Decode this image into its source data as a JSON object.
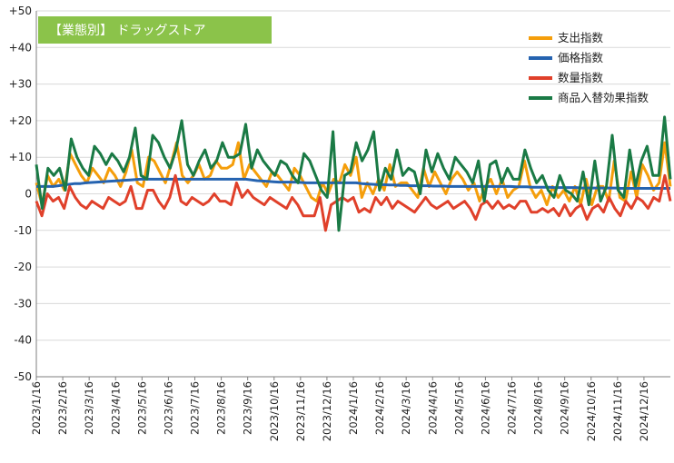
{
  "chart_data": {
    "type": "line",
    "title": "【業態別】 ドラッグストア",
    "xlabel": "",
    "ylabel": "",
    "ylim": [
      -50,
      50
    ],
    "yticks": [
      "+50",
      "+40",
      "+30",
      "+20",
      "+10",
      "0",
      "-10",
      "-20",
      "-30",
      "-40",
      "-50"
    ],
    "ytick_values": [
      50,
      40,
      30,
      20,
      10,
      0,
      -10,
      -20,
      -30,
      -40,
      -50
    ],
    "x_tick_labels": [
      "2023/1/16",
      "2023/2/16",
      "2023/3/16",
      "2023/4/16",
      "2023/5/16",
      "2023/6/16",
      "2023/7/16",
      "2023/8/16",
      "2023/9/16",
      "2023/10/16",
      "2023/11/16",
      "2023/12/16",
      "2024/1/16",
      "2024/2/16",
      "2024/3/16",
      "2024/4/16",
      "2024/5/16",
      "2024/6/16",
      "2024/7/16",
      "2024/8/16",
      "2024/9/16",
      "2024/10/16",
      "2024/11/16",
      "2024/12/16"
    ],
    "grid": true,
    "legend_position": "top-right",
    "series": [
      {
        "name": "支出指数",
        "color": "#F59E0B",
        "values": [
          3,
          -3,
          5,
          2,
          4,
          1,
          11,
          8,
          5,
          3,
          7,
          5,
          3,
          7,
          5,
          2,
          6,
          12,
          3,
          2,
          10,
          9,
          6,
          3,
          8,
          14,
          5,
          3,
          5,
          8,
          4,
          5,
          9,
          7,
          7,
          8,
          14,
          4,
          8,
          6,
          4,
          2,
          6,
          5,
          3,
          1,
          7,
          5,
          2,
          -1,
          -2,
          3,
          0,
          4,
          3,
          8,
          5,
          10,
          -1,
          3,
          0,
          4,
          1,
          8,
          2,
          3,
          3,
          1,
          -1,
          7,
          2,
          6,
          3,
          0,
          4,
          6,
          4,
          1,
          3,
          -2,
          2,
          4,
          0,
          4,
          -1,
          1,
          2,
          9,
          2,
          -1,
          1,
          -3,
          2,
          -1,
          1,
          -2,
          2,
          -3,
          4,
          -3,
          2,
          2,
          -2,
          9,
          -1,
          -2,
          6,
          -1,
          8,
          5,
          1,
          3,
          14,
          2
        ]
      },
      {
        "name": "価格指数",
        "color": "#2563B0",
        "values": [
          2,
          2,
          2,
          2,
          2.2,
          2.4,
          2.6,
          2.8,
          2.8,
          3,
          3.1,
          3.2,
          3.3,
          3.4,
          3.5,
          3.6,
          3.7,
          3.8,
          3.9,
          4,
          4,
          4,
          4,
          4,
          4,
          4,
          4,
          4,
          4,
          4,
          4,
          4,
          4,
          4,
          4,
          4,
          4,
          4,
          4,
          3.8,
          3.6,
          3.5,
          3.4,
          3.3,
          3.2,
          3.2,
          3.2,
          3.2,
          3.1,
          3,
          3,
          3,
          3,
          3,
          3,
          3,
          3,
          3,
          3,
          2.8,
          2.7,
          2.6,
          2.5,
          2.5,
          2.4,
          2.4,
          2.3,
          2.3,
          2.2,
          2.2,
          2.2,
          2.2,
          2.1,
          2.1,
          2.1,
          2,
          2,
          2,
          2,
          2,
          2,
          2,
          2,
          2,
          2,
          2,
          2,
          1.9,
          1.9,
          1.9,
          1.8,
          1.8,
          1.8,
          1.8,
          1.7,
          1.7,
          1.7,
          1.7,
          1.7,
          1.6,
          1.6,
          1.6,
          1.6,
          1.6,
          1.6,
          1.6,
          1.5,
          1.5,
          1.5,
          1.5,
          1.5,
          1.5,
          1.5,
          1.5,
          1.5,
          1.5
        ]
      },
      {
        "name": "数量指数",
        "color": "#E0402A",
        "values": [
          -2,
          -6,
          0,
          -2,
          -1,
          -4,
          2,
          -1,
          -3,
          -4,
          -2,
          -3,
          -4,
          -1,
          -2,
          -3,
          -2,
          2,
          -4,
          -4,
          1,
          1,
          -2,
          -4,
          -1,
          5,
          -2,
          -3,
          -1,
          -2,
          -3,
          -2,
          0,
          -2,
          -2,
          -3,
          3,
          -1,
          1,
          -1,
          -2,
          -3,
          -1,
          -2,
          -3,
          -4,
          -1,
          -3,
          -6,
          -6,
          -6,
          -1,
          -10,
          -3,
          -2,
          -1,
          -2,
          -1,
          -5,
          -4,
          -5,
          -1,
          -3,
          -1,
          -4,
          -2,
          -3,
          -4,
          -5,
          -3,
          -1,
          -3,
          -4,
          -3,
          -2,
          -4,
          -3,
          -2,
          -4,
          -7,
          -3,
          -2,
          -4,
          -2,
          -4,
          -3,
          -4,
          -2,
          -2,
          -5,
          -5,
          -4,
          -5,
          -4,
          -6,
          -3,
          -6,
          -4,
          -3,
          -7,
          -4,
          -3,
          -5,
          -1,
          -4,
          -6,
          -2,
          -4,
          -1,
          -2,
          -4,
          -1,
          -2,
          5,
          -2
        ]
      },
      {
        "name": "商品入替効果指数",
        "color": "#1A7A45",
        "values": [
          8,
          -4,
          7,
          5,
          7,
          1,
          15,
          10,
          7,
          5,
          13,
          11,
          8,
          11,
          9,
          6,
          10,
          18,
          5,
          4,
          16,
          14,
          10,
          7,
          12,
          20,
          8,
          5,
          9,
          12,
          7,
          9,
          14,
          10,
          10,
          11,
          19,
          7,
          12,
          9,
          7,
          5,
          9,
          8,
          5,
          3,
          11,
          9,
          5,
          1,
          -1,
          17,
          -10,
          5,
          6,
          14,
          9,
          12,
          17,
          1,
          7,
          4,
          12,
          5,
          7,
          6,
          0,
          12,
          6,
          11,
          7,
          4,
          10,
          8,
          6,
          3,
          9,
          -2,
          8,
          9,
          3,
          7,
          4,
          4,
          12,
          7,
          3,
          5,
          1,
          -1,
          5,
          1,
          0,
          -2,
          6,
          -3,
          9,
          -2,
          2,
          16,
          1,
          -1,
          12,
          2,
          9,
          13,
          5,
          5,
          21,
          4
        ]
      }
    ]
  }
}
